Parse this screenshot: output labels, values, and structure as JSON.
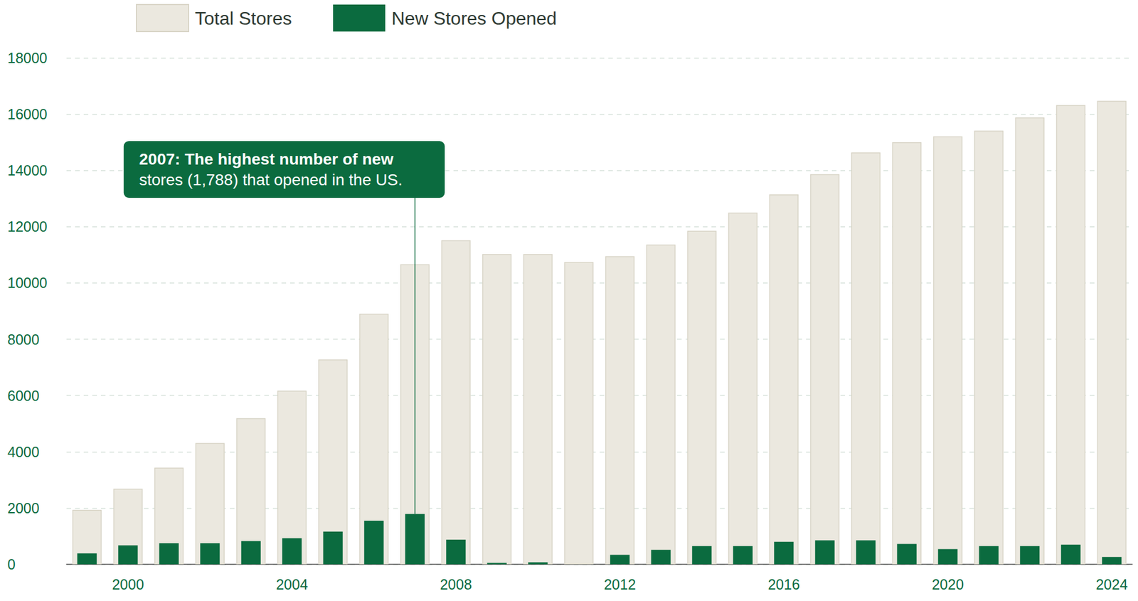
{
  "chart_data": {
    "type": "bar",
    "categories": [
      null,
      "2000",
      null,
      null,
      null,
      "2004",
      null,
      null,
      null,
      "2008",
      null,
      null,
      null,
      "2012",
      null,
      null,
      null,
      "2016",
      null,
      null,
      null,
      "2020",
      null,
      null,
      null,
      "2024"
    ],
    "series": [
      {
        "name": "Total Stores",
        "color": "#ebe8df",
        "values": [
          1937,
          2686,
          3435,
          4313,
          5191,
          6172,
          7283,
          8910,
          10666,
          11519,
          11028,
          11028,
          10744,
          10950,
          11364,
          11854,
          12500,
          13146,
          13869,
          14644,
          15005,
          15212,
          15418,
          15883,
          16322,
          16477
        ]
      },
      {
        "name": "New Stores Opened",
        "color": "#0b6b3f",
        "values": [
          387,
          671,
          749,
          749,
          826,
          930,
          1162,
          1550,
          1788,
          878,
          50,
          70,
          0,
          336,
          516,
          646,
          646,
          800,
          852,
          852,
          723,
          542,
          646,
          646,
          697,
          258
        ]
      }
    ],
    "ylim": [
      0,
      18000
    ],
    "yticks": [
      0,
      2000,
      4000,
      6000,
      8000,
      10000,
      12000,
      14000,
      16000,
      18000
    ],
    "grid": true,
    "legend": "top-left",
    "annotation": {
      "value": 1788,
      "title": "2007: The highest number of new",
      "text": "stores (1,788) that opened in the US."
    }
  }
}
